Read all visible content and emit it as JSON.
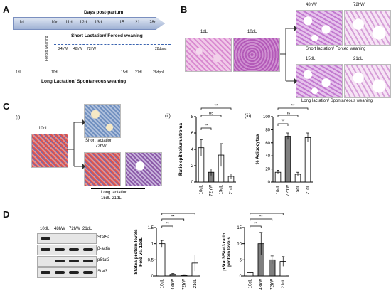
{
  "panels": {
    "A": "A",
    "B": "B",
    "C": "C",
    "D": "D"
  },
  "timeline": {
    "title": "Days post-partum",
    "days": [
      "1d",
      "10d",
      "11d",
      "12d",
      "13d",
      "15",
      "21",
      "28d"
    ],
    "forced_weaning": "Forced weaning",
    "short_marks": [
      "24hW",
      "48hW",
      "72hW",
      "28dpps"
    ],
    "short_title": "Short Lactation/ Forced weaning",
    "long_marks": [
      "1dL",
      "10dL",
      "15dL",
      "21dL",
      "28dppL"
    ],
    "long_title": "Long Lactation/ Spontaneous weaning"
  },
  "panelB": {
    "labels": [
      "1dL",
      "10dL",
      "48hW",
      "72hW",
      "15dL",
      "21dL"
    ],
    "short": "Short lactation/ Forced weaning",
    "long": "Long lactation/ Spontaneous weaning"
  },
  "panelC": {
    "sub": [
      "(i)",
      "(ii)",
      "(iii)"
    ],
    "img_label": "10dL",
    "short": "Short lactation",
    "short_sub": "72hW",
    "long": "Long lactation",
    "long_sub": "15dL-21dL",
    "sig": [
      "**",
      "ns",
      "**",
      "ns"
    ]
  },
  "panelD": {
    "lanes": [
      "10dL",
      "48hW",
      "72hW",
      "21dL"
    ],
    "proteins": [
      "Stat5a",
      "β-actin",
      "pStat3",
      "Stat3"
    ],
    "sig": [
      "**",
      "**",
      "**",
      "**",
      "*",
      "**"
    ]
  },
  "colors": {
    "white_bar": "#ffffff",
    "grey_bar": "#7f7f7f",
    "axis": "#000000",
    "line": "#4a6fb8"
  },
  "chart_data": [
    {
      "type": "bar",
      "ylabel": "Ratio epithelium/stroma",
      "categories": [
        "10dL",
        "72hW",
        "15dL",
        "21dL"
      ],
      "values": [
        4.2,
        1.2,
        3.3,
        0.7
      ],
      "errors": [
        1.0,
        0.4,
        1.4,
        0.3
      ],
      "fill": [
        "white",
        "grey",
        "white",
        "white"
      ],
      "ylim": [
        0,
        8
      ],
      "yticks": [
        0,
        2,
        4,
        6,
        8
      ],
      "grid": false
    },
    {
      "type": "bar",
      "ylabel": "% Adipocytes",
      "categories": [
        "10dL",
        "72hW",
        "15dL",
        "21dL"
      ],
      "values": [
        15,
        70,
        12,
        68
      ],
      "errors": [
        3,
        5,
        3,
        7
      ],
      "fill": [
        "white",
        "grey",
        "white",
        "white"
      ],
      "ylim": [
        0,
        100
      ],
      "yticks": [
        0,
        20,
        40,
        60,
        80,
        100
      ],
      "grid": false
    },
    {
      "type": "bar",
      "ylabel": "Stat5a protein levels Fold vs. 10dL",
      "categories": [
        "10dL",
        "48hW",
        "72hW",
        "21dL"
      ],
      "values": [
        1.0,
        0.05,
        0.02,
        0.4
      ],
      "errors": [
        0.1,
        0.03,
        0.02,
        0.25
      ],
      "fill": [
        "white",
        "grey",
        "grey",
        "white"
      ],
      "ylim": [
        0,
        1.5
      ],
      "yticks": [
        0,
        0.5,
        1.0,
        1.5
      ],
      "grid": false
    },
    {
      "type": "bar",
      "ylabel": "pStat3/Stat3 ratio protein levels",
      "categories": [
        "10dL",
        "48hW",
        "72hW",
        "21dL"
      ],
      "values": [
        1,
        10,
        5,
        4.5
      ],
      "errors": [
        0.2,
        3.5,
        1.2,
        1.5
      ],
      "fill": [
        "white",
        "grey",
        "grey",
        "white"
      ],
      "ylim": [
        0,
        15
      ],
      "yticks": [
        0,
        5,
        10,
        15
      ],
      "grid": false
    }
  ]
}
